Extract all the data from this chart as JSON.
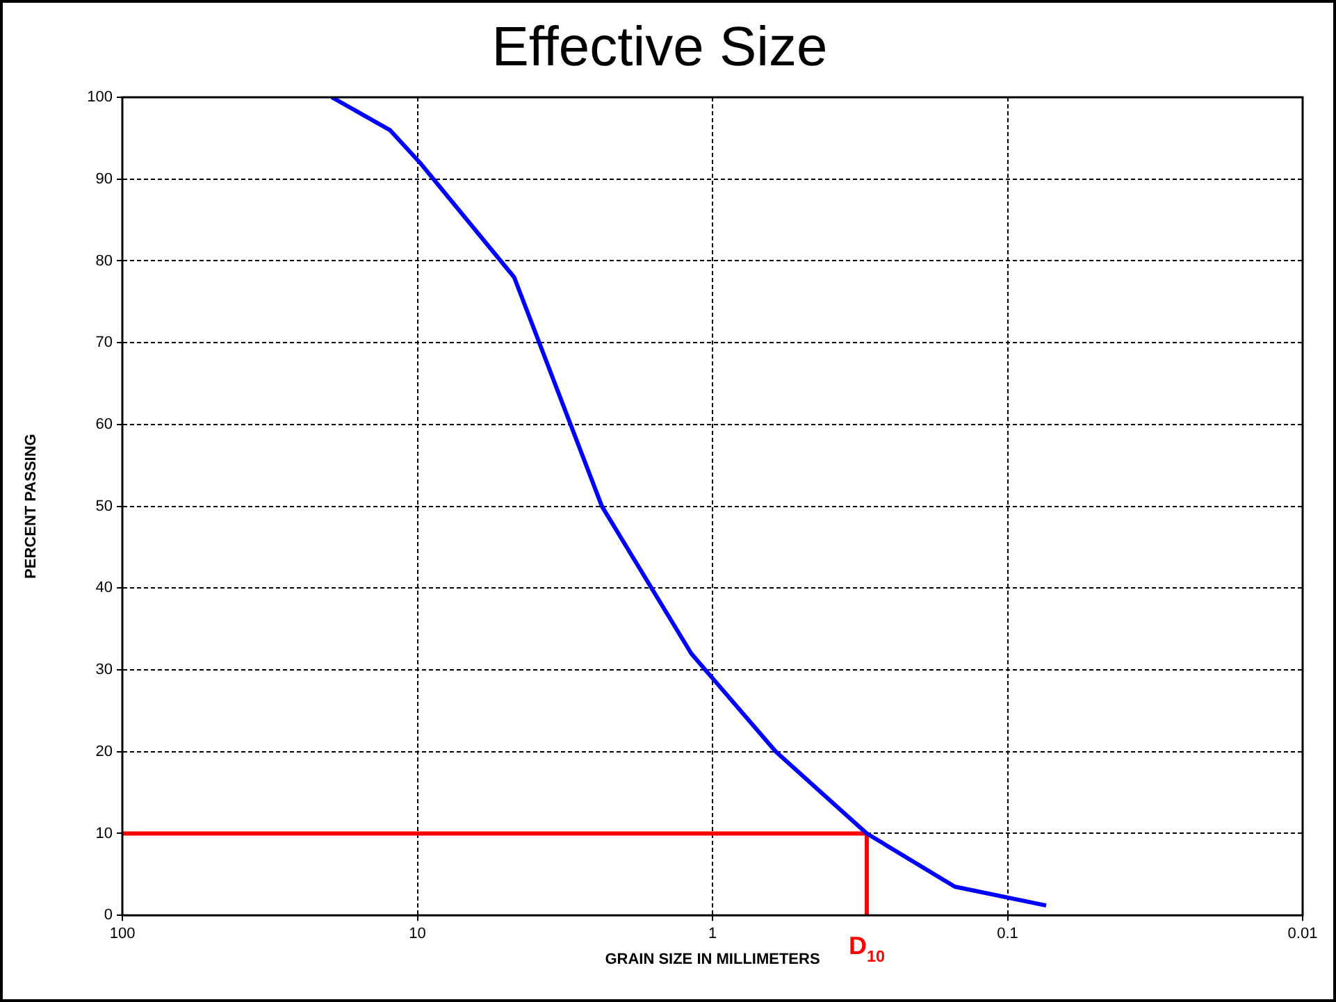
{
  "chart_data": {
    "type": "line",
    "title": "Effective Size",
    "xlabel": "GRAIN SIZE IN MILLIMETERS",
    "ylabel": "PERCENT PASSING",
    "log": "x",
    "xlim": [
      100,
      0.01
    ],
    "xticks": [
      100,
      10,
      1,
      0.1,
      0.01
    ],
    "ylim": [
      0,
      100
    ],
    "yticks": [
      0,
      10,
      20,
      30,
      40,
      50,
      60,
      70,
      80,
      90,
      100
    ],
    "grid": true,
    "legend": false,
    "marker": "none",
    "line_style": "solid",
    "series": [
      {
        "color": "#0000ff",
        "x": [
          19.5,
          12.4,
          9.8,
          4.7,
          2.37,
          1.18,
          0.61,
          0.3,
          0.151,
          0.074
        ],
        "values": [
          100,
          96,
          92,
          78,
          50,
          32,
          20,
          10,
          3.5,
          1.2
        ]
      },
      {
        "color": "#ff0000",
        "x": [
          100,
          0.3,
          0.3
        ],
        "values": [
          10,
          10,
          0
        ]
      }
    ],
    "annotations": [
      {
        "text": "D$_{10}$",
        "x": 0.3,
        "y": 0
      }
    ]
  }
}
